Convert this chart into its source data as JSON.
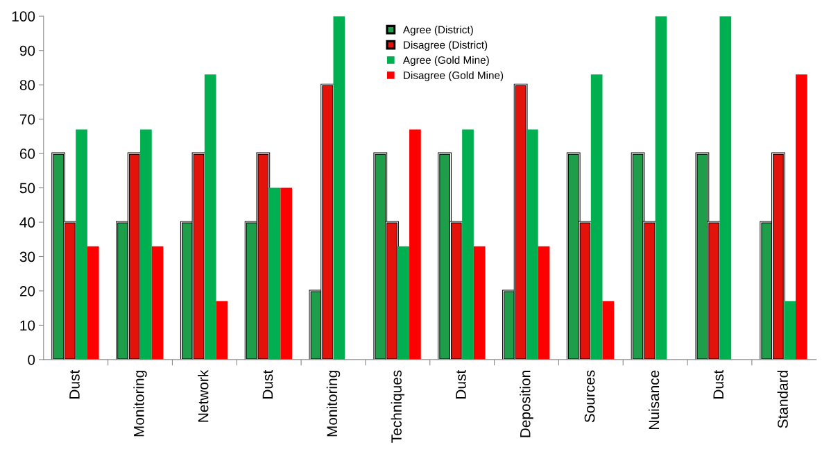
{
  "chart_data": {
    "type": "bar",
    "categories": [
      "Dust",
      "Monitoring",
      "Network",
      "Dust",
      "Monitoring",
      "Techniques",
      "Dust",
      "Deposition",
      "Sources",
      "Nuisance",
      "Dust",
      "Standard"
    ],
    "series": [
      {
        "name": "Agree (District)",
        "color": "#1e9e4a",
        "values": [
          60,
          40,
          40,
          40,
          20,
          60,
          60,
          20,
          60,
          60,
          60,
          40
        ]
      },
      {
        "name": "Disagree (District)",
        "color": "#e3120b",
        "values": [
          40,
          60,
          60,
          60,
          80,
          40,
          40,
          80,
          40,
          40,
          40,
          60
        ]
      },
      {
        "name": "Agree (Gold Mine)",
        "color": "#00b050",
        "values": [
          67,
          67,
          83,
          50,
          100,
          33,
          67,
          67,
          83,
          100,
          100,
          17
        ]
      },
      {
        "name": "Disagree (Gold Mine)",
        "color": "#ff0000",
        "values": [
          33,
          33,
          17,
          50,
          0,
          67,
          33,
          33,
          17,
          0,
          0,
          83
        ]
      }
    ],
    "ylim": [
      0,
      100
    ],
    "yticks": [
      0,
      10,
      20,
      30,
      40,
      50,
      60,
      70,
      80,
      90,
      100
    ],
    "grid": false,
    "legend": "top"
  }
}
